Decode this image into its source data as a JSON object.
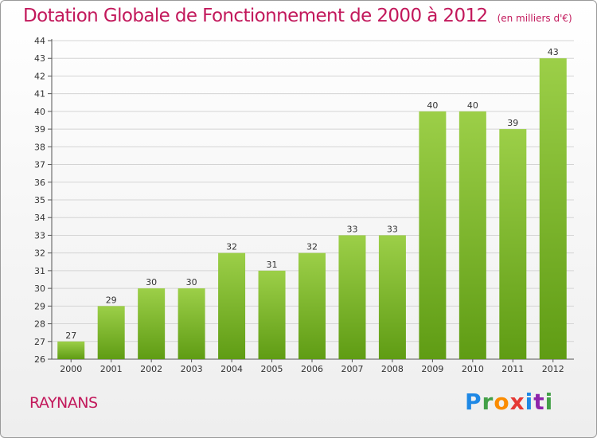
{
  "header": {
    "title": "Dotation Globale de Fonctionnement de 2000 à 2012",
    "subtitle": "(en milliers d'€)"
  },
  "footer": {
    "place": "RAYNANS",
    "logo": "Proxiti"
  },
  "colors": {
    "title": "#c2185b",
    "bar_top": "#9ccf48",
    "bar_bottom": "#5f9c14",
    "grid": "#d4d4d4"
  },
  "chart_data": {
    "type": "bar",
    "categories": [
      "2000",
      "2001",
      "2002",
      "2003",
      "2004",
      "2005",
      "2006",
      "2007",
      "2008",
      "2009",
      "2010",
      "2011",
      "2012"
    ],
    "values": [
      27,
      29,
      30,
      30,
      32,
      31,
      32,
      33,
      33,
      40,
      40,
      39,
      43
    ],
    "ylim": [
      26,
      44
    ],
    "yticks": [
      26,
      27,
      28,
      29,
      30,
      31,
      32,
      33,
      34,
      35,
      36,
      37,
      38,
      39,
      40,
      41,
      42,
      43,
      44
    ],
    "grid": true,
    "legend": "none"
  }
}
